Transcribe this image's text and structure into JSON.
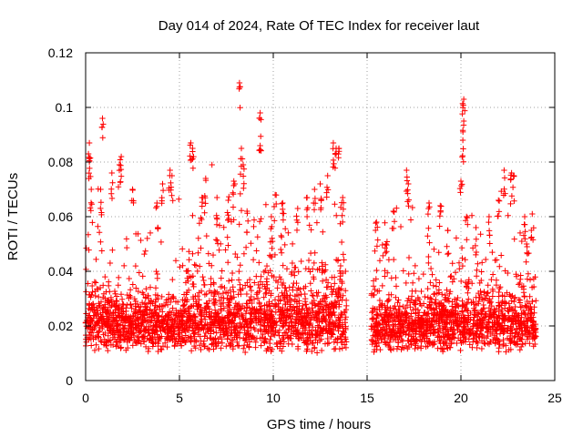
{
  "chart_data": {
    "type": "scatter",
    "title": "Day 014 of 2024, Rate Of TEC Index for receiver laut",
    "xlabel": "GPS time / hours",
    "ylabel": "ROTI / TECUs",
    "xlim": [
      0,
      25
    ],
    "ylim": [
      0,
      0.12
    ],
    "xticks": [
      0,
      5,
      10,
      15,
      20,
      25
    ],
    "yticks": [
      0,
      0.02,
      0.04,
      0.06,
      0.08,
      0.1,
      0.12
    ],
    "xtick_labels": [
      "0",
      "5",
      "10",
      "15",
      "20",
      "25"
    ],
    "ytick_labels": [
      "0",
      "0.02",
      "0.04",
      "0.06",
      "0.08",
      "0.1",
      "0.12"
    ],
    "grid": true,
    "marker": "plus",
    "color": "#ff0000",
    "data_gaps_hours": [
      [
        13.9,
        15.2
      ],
      [
        24.0,
        25.0
      ]
    ],
    "dense_band": {
      "x_ranges": [
        [
          0,
          13.9
        ],
        [
          15.2,
          24.0
        ]
      ],
      "y_range": [
        0.005,
        0.035
      ]
    },
    "outliers": [
      {
        "x": 0.2,
        "y": 0.087
      },
      {
        "x": 0.15,
        "y": 0.083
      },
      {
        "x": 0.3,
        "y": 0.07
      },
      {
        "x": 0.9,
        "y": 0.096
      },
      {
        "x": 0.8,
        "y": 0.07
      },
      {
        "x": 1.4,
        "y": 0.076
      },
      {
        "x": 1.8,
        "y": 0.079
      },
      {
        "x": 1.9,
        "y": 0.082
      },
      {
        "x": 2.5,
        "y": 0.07
      },
      {
        "x": 3.8,
        "y": 0.065
      },
      {
        "x": 4.1,
        "y": 0.072
      },
      {
        "x": 4.5,
        "y": 0.077
      },
      {
        "x": 4.6,
        "y": 0.075
      },
      {
        "x": 5.6,
        "y": 0.087
      },
      {
        "x": 5.7,
        "y": 0.085
      },
      {
        "x": 6.2,
        "y": 0.067
      },
      {
        "x": 6.4,
        "y": 0.074
      },
      {
        "x": 7.0,
        "y": 0.067
      },
      {
        "x": 7.6,
        "y": 0.066
      },
      {
        "x": 7.9,
        "y": 0.073
      },
      {
        "x": 8.3,
        "y": 0.085
      },
      {
        "x": 8.4,
        "y": 0.079
      },
      {
        "x": 8.2,
        "y": 0.109
      },
      {
        "x": 8.6,
        "y": 0.062
      },
      {
        "x": 9.3,
        "y": 0.098
      },
      {
        "x": 9.3,
        "y": 0.086
      },
      {
        "x": 9.9,
        "y": 0.06
      },
      {
        "x": 10.1,
        "y": 0.068
      },
      {
        "x": 10.5,
        "y": 0.065
      },
      {
        "x": 11.3,
        "y": 0.063
      },
      {
        "x": 11.8,
        "y": 0.067
      },
      {
        "x": 12.2,
        "y": 0.07
      },
      {
        "x": 12.5,
        "y": 0.072
      },
      {
        "x": 12.9,
        "y": 0.075
      },
      {
        "x": 13.2,
        "y": 0.087
      },
      {
        "x": 13.35,
        "y": 0.085
      },
      {
        "x": 13.5,
        "y": 0.085
      },
      {
        "x": 13.7,
        "y": 0.067
      },
      {
        "x": 15.5,
        "y": 0.058
      },
      {
        "x": 16.0,
        "y": 0.05
      },
      {
        "x": 16.4,
        "y": 0.062
      },
      {
        "x": 17.1,
        "y": 0.077
      },
      {
        "x": 17.2,
        "y": 0.072
      },
      {
        "x": 18.3,
        "y": 0.065
      },
      {
        "x": 18.9,
        "y": 0.064
      },
      {
        "x": 19.3,
        "y": 0.055
      },
      {
        "x": 20.1,
        "y": 0.1
      },
      {
        "x": 20.15,
        "y": 0.103
      },
      {
        "x": 20.1,
        "y": 0.088
      },
      {
        "x": 20.0,
        "y": 0.073
      },
      {
        "x": 20.3,
        "y": 0.06
      },
      {
        "x": 20.8,
        "y": 0.056
      },
      {
        "x": 21.5,
        "y": 0.06
      },
      {
        "x": 22.0,
        "y": 0.066
      },
      {
        "x": 22.3,
        "y": 0.077
      },
      {
        "x": 22.7,
        "y": 0.076
      },
      {
        "x": 22.8,
        "y": 0.075
      },
      {
        "x": 23.4,
        "y": 0.06
      },
      {
        "x": 23.8,
        "y": 0.061
      },
      {
        "x": 23.5,
        "y": 0.05
      }
    ]
  }
}
